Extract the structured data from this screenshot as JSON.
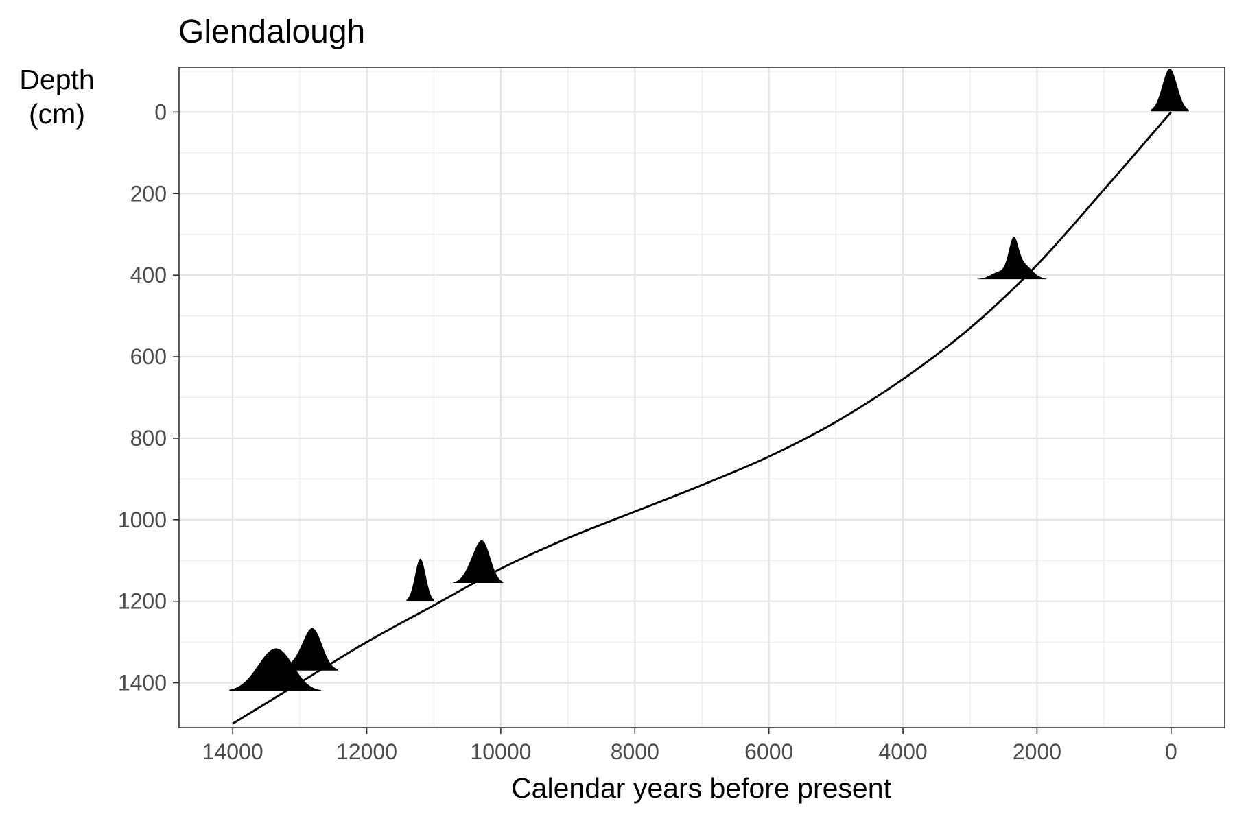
{
  "chart_data": {
    "type": "line",
    "title": "Glendalough",
    "xlabel": "Calendar years before present",
    "ylabel": [
      "Depth",
      "(cm)"
    ],
    "xlim": [
      14800,
      -800
    ],
    "ylim": [
      1510,
      -110
    ],
    "x_reversed": true,
    "y_reversed": true,
    "xticks": [
      14000,
      12000,
      10000,
      8000,
      6000,
      4000,
      2000,
      0
    ],
    "yticks": [
      0,
      200,
      400,
      600,
      800,
      1000,
      1200,
      1400
    ],
    "grid": true,
    "series": [
      {
        "kind": "age-depth curve",
        "points": [
          [
            14000,
            1500
          ],
          [
            13000,
            1400
          ],
          [
            12000,
            1300
          ],
          [
            11000,
            1210
          ],
          [
            10000,
            1120
          ],
          [
            9000,
            1045
          ],
          [
            8000,
            980
          ],
          [
            7000,
            915
          ],
          [
            6000,
            845
          ],
          [
            5000,
            760
          ],
          [
            4000,
            655
          ],
          [
            3000,
            530
          ],
          [
            2000,
            375
          ],
          [
            1000,
            190
          ],
          [
            0,
            0
          ]
        ]
      }
    ],
    "calibrated_date_densities": [
      {
        "depth": 1420,
        "peaks": [
          [
            13400,
            1.0,
            250
          ],
          [
            13200,
            0.25,
            200
          ]
        ]
      },
      {
        "depth": 1370,
        "peaks": [
          [
            12800,
            1.0,
            140
          ],
          [
            13000,
            0.2,
            180
          ]
        ]
      },
      {
        "depth": 1200,
        "peaks": [
          [
            11200,
            1.0,
            80
          ]
        ]
      },
      {
        "depth": 1155,
        "peaks": [
          [
            10250,
            1.0,
            110
          ],
          [
            10400,
            0.55,
            120
          ]
        ]
      },
      {
        "depth": 410,
        "peaks": [
          [
            2350,
            1.0,
            70
          ],
          [
            2200,
            0.45,
            130
          ],
          [
            2500,
            0.25,
            150
          ],
          [
            2650,
            0.03,
            80
          ]
        ]
      },
      {
        "depth": -2,
        "peaks": [
          [
            20,
            1.0,
            110
          ]
        ]
      }
    ]
  }
}
